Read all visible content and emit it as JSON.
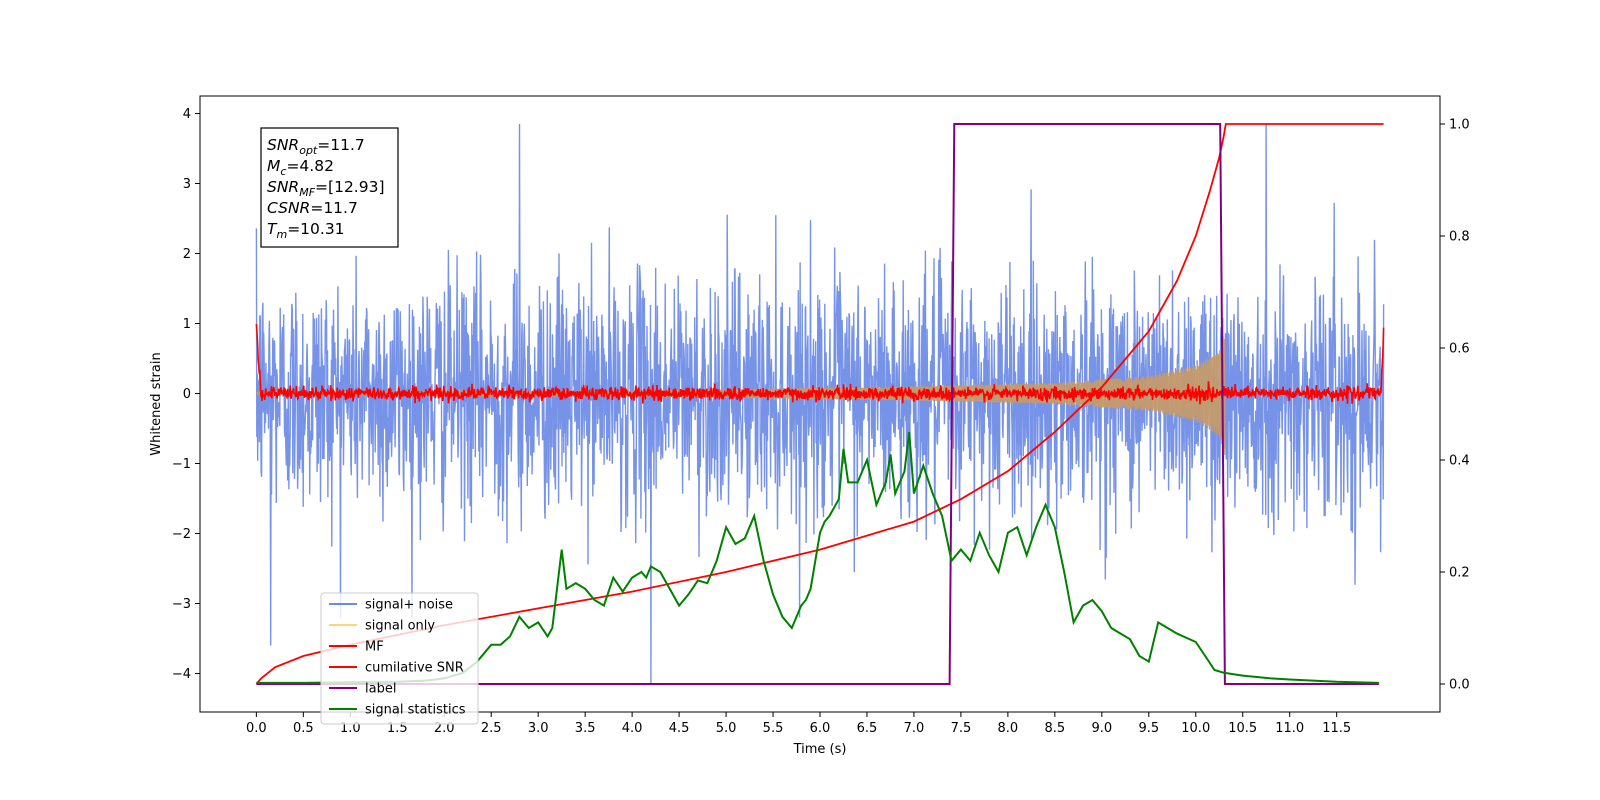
{
  "chart_data": {
    "type": "line",
    "xlabel": "Time (s)",
    "ylabel": "Whitened strain",
    "xlim": [
      -0.6,
      12.6
    ],
    "ylim": [
      -4.55,
      4.25
    ],
    "y2lim": [
      -0.05,
      1.05
    ],
    "x_ticks": [
      0.0,
      0.5,
      1.0,
      1.5,
      2.0,
      2.5,
      3.0,
      3.5,
      4.0,
      4.5,
      5.0,
      5.5,
      6.0,
      6.5,
      7.0,
      7.5,
      8.0,
      8.5,
      9.0,
      9.5,
      10.0,
      10.5,
      11.0,
      11.5
    ],
    "x_tick_labels": [
      "0.0",
      "0.5",
      "1.0",
      "1.5",
      "2.0",
      "2.5",
      "3.0",
      "3.5",
      "4.0",
      "4.5",
      "5.0",
      "5.5",
      "6.0",
      "6.5",
      "7.0",
      "7.5",
      "8.0",
      "8.5",
      "9.0",
      "9.5",
      "10.0",
      "10.5",
      "11.0",
      "11.5"
    ],
    "y_ticks": [
      -4,
      -3,
      -2,
      -1,
      0,
      1,
      2,
      3,
      4
    ],
    "y_tick_labels": [
      "−4",
      "−3",
      "−2",
      "−1",
      "0",
      "1",
      "2",
      "3",
      "4"
    ],
    "y2_ticks": [
      0.0,
      0.2,
      0.4,
      0.6,
      0.8,
      1.0
    ],
    "y2_tick_labels": [
      "0.0",
      "0.2",
      "0.4",
      "0.6",
      "0.8",
      "1.0"
    ],
    "legend_position": "lower-left",
    "legend": [
      {
        "label": "signal+ noise",
        "color": "#6b8ae6"
      },
      {
        "label": "signal only",
        "color": "#ffd27f"
      },
      {
        "label": "MF",
        "color": "#ff0000"
      },
      {
        "label": "cumilative SNR",
        "color": "#ff0000"
      },
      {
        "label": "label",
        "color": "#800080"
      },
      {
        "label": "signal statistics",
        "color": "#008000"
      }
    ],
    "info_box": {
      "lines": [
        {
          "sym": "SNR",
          "sub": "opt",
          "val": "=11.7"
        },
        {
          "sym": "M",
          "sub": "c",
          "val": "=4.82"
        },
        {
          "sym": "SNR",
          "sub": "MF",
          "val": "=[12.93]"
        },
        {
          "sym": "CSNR",
          "sub": "",
          "val": "=11.7"
        },
        {
          "sym": "T",
          "sub": "m",
          "val": "=10.31"
        }
      ]
    },
    "series": [
      {
        "name": "signal+ noise",
        "axis": "left",
        "color": "#6b8ae6",
        "x_range": [
          0.0,
          12.0
        ],
        "approx_band": [
          -2.5,
          2.5
        ],
        "peaks": [
          [
            2.8,
            3.85
          ],
          [
            4.2,
            -4.15
          ],
          [
            10.75,
            3.85
          ],
          [
            0.15,
            -3.6
          ]
        ]
      },
      {
        "name": "signal only",
        "axis": "left",
        "color": "#ffd27f",
        "envelope": [
          [
            0.0,
            0.02
          ],
          [
            4.0,
            0.04
          ],
          [
            7.0,
            0.1
          ],
          [
            8.5,
            0.15
          ],
          [
            9.5,
            0.25
          ],
          [
            10.0,
            0.4
          ],
          [
            10.25,
            0.6
          ],
          [
            10.31,
            0.9
          ]
        ],
        "end_x": 10.31
      },
      {
        "name": "MF",
        "axis": "left",
        "color": "#ff0000",
        "x_range": [
          0.0,
          12.0
        ],
        "edge_spikes": [
          [
            0.0,
            1.0
          ],
          [
            12.0,
            0.9
          ]
        ],
        "amplitude": 0.08
      },
      {
        "name": "cumilative SNR",
        "axis": "right",
        "color": "#ff0000",
        "points": [
          [
            0.0,
            0.0
          ],
          [
            0.05,
            0.01
          ],
          [
            0.2,
            0.03
          ],
          [
            0.5,
            0.05
          ],
          [
            1.0,
            0.07
          ],
          [
            2.0,
            0.105
          ],
          [
            3.0,
            0.135
          ],
          [
            4.0,
            0.165
          ],
          [
            5.0,
            0.2
          ],
          [
            6.0,
            0.24
          ],
          [
            6.5,
            0.265
          ],
          [
            7.0,
            0.29
          ],
          [
            7.5,
            0.33
          ],
          [
            8.0,
            0.38
          ],
          [
            8.5,
            0.45
          ],
          [
            9.0,
            0.53
          ],
          [
            9.5,
            0.63
          ],
          [
            9.8,
            0.72
          ],
          [
            10.0,
            0.8
          ],
          [
            10.15,
            0.88
          ],
          [
            10.25,
            0.94
          ],
          [
            10.3,
            0.98
          ],
          [
            10.32,
            1.0
          ],
          [
            12.0,
            1.0
          ]
        ]
      },
      {
        "name": "label",
        "axis": "right",
        "color": "#800080",
        "points": [
          [
            0.0,
            0.0
          ],
          [
            7.38,
            0.0
          ],
          [
            7.43,
            1.0
          ],
          [
            10.26,
            1.0
          ],
          [
            10.31,
            0.0
          ],
          [
            11.95,
            0.0
          ]
        ]
      },
      {
        "name": "signal statistics",
        "axis": "right",
        "color": "#008000",
        "points": [
          [
            0.0,
            0.002
          ],
          [
            0.5,
            0.002
          ],
          [
            1.0,
            0.003
          ],
          [
            1.5,
            0.004
          ],
          [
            1.8,
            0.006
          ],
          [
            2.0,
            0.01
          ],
          [
            2.2,
            0.02
          ],
          [
            2.35,
            0.04
          ],
          [
            2.5,
            0.07
          ],
          [
            2.6,
            0.07
          ],
          [
            2.7,
            0.085
          ],
          [
            2.8,
            0.12
          ],
          [
            2.9,
            0.1
          ],
          [
            3.0,
            0.11
          ],
          [
            3.1,
            0.085
          ],
          [
            3.15,
            0.1
          ],
          [
            3.2,
            0.17
          ],
          [
            3.25,
            0.24
          ],
          [
            3.3,
            0.17
          ],
          [
            3.4,
            0.18
          ],
          [
            3.5,
            0.17
          ],
          [
            3.6,
            0.15
          ],
          [
            3.7,
            0.14
          ],
          [
            3.8,
            0.19
          ],
          [
            3.9,
            0.165
          ],
          [
            4.0,
            0.19
          ],
          [
            4.1,
            0.2
          ],
          [
            4.15,
            0.19
          ],
          [
            4.2,
            0.21
          ],
          [
            4.3,
            0.2
          ],
          [
            4.4,
            0.17
          ],
          [
            4.5,
            0.14
          ],
          [
            4.6,
            0.16
          ],
          [
            4.7,
            0.185
          ],
          [
            4.8,
            0.18
          ],
          [
            4.9,
            0.22
          ],
          [
            5.0,
            0.28
          ],
          [
            5.1,
            0.25
          ],
          [
            5.2,
            0.26
          ],
          [
            5.3,
            0.3
          ],
          [
            5.4,
            0.22
          ],
          [
            5.5,
            0.16
          ],
          [
            5.6,
            0.12
          ],
          [
            5.7,
            0.1
          ],
          [
            5.8,
            0.14
          ],
          [
            5.85,
            0.15
          ],
          [
            5.9,
            0.17
          ],
          [
            6.0,
            0.27
          ],
          [
            6.05,
            0.29
          ],
          [
            6.1,
            0.3
          ],
          [
            6.2,
            0.33
          ],
          [
            6.25,
            0.42
          ],
          [
            6.3,
            0.36
          ],
          [
            6.4,
            0.36
          ],
          [
            6.5,
            0.4
          ],
          [
            6.55,
            0.36
          ],
          [
            6.6,
            0.32
          ],
          [
            6.7,
            0.36
          ],
          [
            6.75,
            0.41
          ],
          [
            6.8,
            0.34
          ],
          [
            6.9,
            0.38
          ],
          [
            6.95,
            0.45
          ],
          [
            7.0,
            0.34
          ],
          [
            7.1,
            0.39
          ],
          [
            7.2,
            0.34
          ],
          [
            7.3,
            0.3
          ],
          [
            7.35,
            0.26
          ],
          [
            7.4,
            0.22
          ],
          [
            7.5,
            0.24
          ],
          [
            7.6,
            0.22
          ],
          [
            7.7,
            0.27
          ],
          [
            7.8,
            0.23
          ],
          [
            7.9,
            0.2
          ],
          [
            8.0,
            0.27
          ],
          [
            8.1,
            0.28
          ],
          [
            8.2,
            0.23
          ],
          [
            8.3,
            0.28
          ],
          [
            8.4,
            0.32
          ],
          [
            8.5,
            0.28
          ],
          [
            8.6,
            0.2
          ],
          [
            8.7,
            0.11
          ],
          [
            8.8,
            0.14
          ],
          [
            8.9,
            0.15
          ],
          [
            9.0,
            0.13
          ],
          [
            9.1,
            0.1
          ],
          [
            9.2,
            0.09
          ],
          [
            9.3,
            0.08
          ],
          [
            9.4,
            0.05
          ],
          [
            9.5,
            0.04
          ],
          [
            9.6,
            0.11
          ],
          [
            9.7,
            0.1
          ],
          [
            9.8,
            0.09
          ],
          [
            10.0,
            0.075
          ],
          [
            10.1,
            0.05
          ],
          [
            10.2,
            0.025
          ],
          [
            10.3,
            0.02
          ],
          [
            10.5,
            0.015
          ],
          [
            10.8,
            0.01
          ],
          [
            11.0,
            0.008
          ],
          [
            11.5,
            0.004
          ],
          [
            11.95,
            0.002
          ]
        ]
      }
    ]
  }
}
